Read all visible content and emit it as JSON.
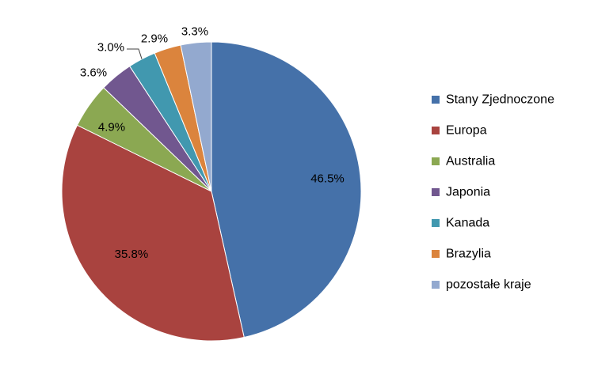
{
  "chart_data": {
    "type": "pie",
    "title": "",
    "labels": [
      "Stany Zjednoczone",
      "Europa",
      "Australia",
      "Japonia",
      "Kanada",
      "Brazylia",
      "pozostałe kraje"
    ],
    "values": [
      46.5,
      35.8,
      4.9,
      3.6,
      3.0,
      2.9,
      3.3
    ],
    "value_labels": [
      "46.5%",
      "35.8%",
      "4.9%",
      "3.6%",
      "3.0%",
      "2.9%",
      "3.3%"
    ],
    "unit": "%",
    "colors": [
      "#4571A9",
      "#A9433F",
      "#8BA852",
      "#71578F",
      "#4198AF",
      "#DB843D",
      "#93A9CF"
    ],
    "start_angle": "12 o'clock",
    "direction": "clockwise",
    "legend": {
      "position": "right",
      "entries": [
        "Stany Zjednoczone",
        "Europa",
        "Australia",
        "Japonia",
        "Kanada",
        "Brazylia",
        "pozostałe kraje"
      ]
    }
  }
}
